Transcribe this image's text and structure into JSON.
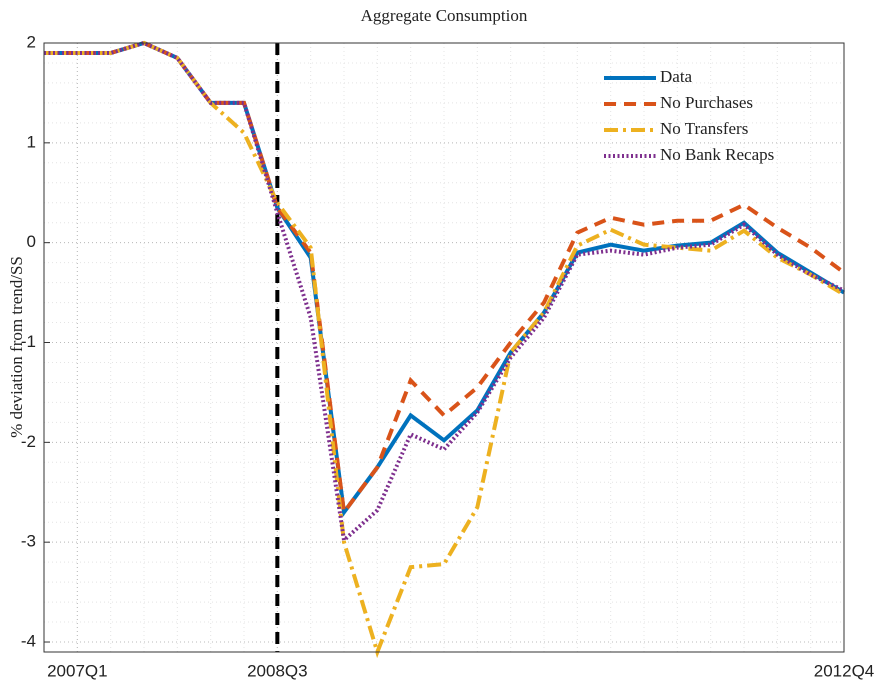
{
  "chart_data": {
    "type": "line",
    "title": "Aggregate Consumption",
    "y_label": "% deviation from trend/SS",
    "categories": [
      null,
      "2007Q1",
      null,
      null,
      null,
      null,
      null,
      "2008Q3",
      null,
      null,
      null,
      null,
      null,
      null,
      null,
      null,
      null,
      null,
      null,
      null,
      null,
      null,
      null,
      null,
      "2012Q4"
    ],
    "series": [
      {
        "name": "Data",
        "color": "#0072bd",
        "dash": "solid",
        "values": [
          1.9,
          1.9,
          1.9,
          2.0,
          1.85,
          1.4,
          1.4,
          0.35,
          -0.15,
          -2.7,
          -2.25,
          -1.73,
          -1.98,
          -1.68,
          -1.1,
          -0.7,
          -0.1,
          -0.02,
          -0.08,
          -0.03,
          0.0,
          0.2,
          -0.1,
          -0.3,
          -0.5
        ]
      },
      {
        "name": "No Purchases",
        "color": "#d95319",
        "dash": "dashed",
        "values": [
          1.9,
          1.9,
          1.9,
          2.0,
          1.85,
          1.4,
          1.4,
          0.35,
          -0.1,
          -2.7,
          -2.25,
          -1.38,
          -1.73,
          -1.45,
          -1.0,
          -0.6,
          0.1,
          0.25,
          0.18,
          0.22,
          0.22,
          0.38,
          0.15,
          -0.05,
          -0.3
        ]
      },
      {
        "name": "No Transfers",
        "color": "#edb120",
        "dash": "dashdot",
        "values": [
          1.9,
          1.9,
          1.9,
          2.0,
          1.85,
          1.4,
          1.1,
          0.4,
          -0.05,
          -3.0,
          -4.1,
          -3.25,
          -3.22,
          -2.65,
          -1.1,
          -0.7,
          -0.03,
          0.13,
          -0.02,
          -0.05,
          -0.08,
          0.12,
          -0.15,
          -0.32,
          -0.52
        ]
      },
      {
        "name": "No Bank Recaps",
        "color": "#7e2f8e",
        "dash": "dotted",
        "values": [
          1.9,
          1.9,
          1.9,
          2.0,
          1.85,
          1.4,
          1.4,
          0.3,
          -0.75,
          -2.98,
          -2.68,
          -1.92,
          -2.07,
          -1.7,
          -1.15,
          -0.75,
          -0.12,
          -0.08,
          -0.12,
          -0.05,
          -0.02,
          0.18,
          -0.12,
          -0.32,
          -0.48
        ]
      }
    ],
    "ylim": [
      -4.1,
      2
    ],
    "yticks": [
      -4,
      -3,
      -2,
      -1,
      0,
      1,
      2
    ],
    "grid": true,
    "minor_grid": true,
    "vline_at": "2008Q3",
    "legend": "upper right"
  }
}
